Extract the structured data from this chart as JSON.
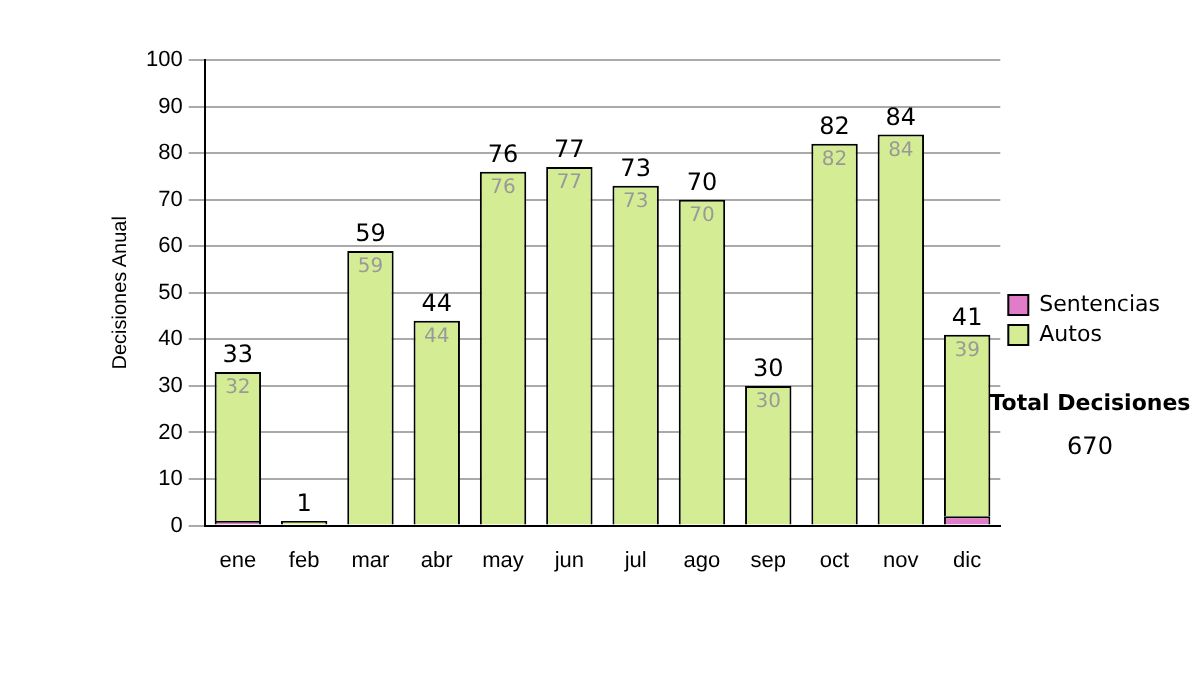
{
  "chart_data": {
    "type": "bar",
    "stacked": true,
    "ylabel": "Decisiones Anual",
    "categories": [
      "ene",
      "feb",
      "mar",
      "abr",
      "may",
      "jun",
      "jul",
      "ago",
      "sep",
      "oct",
      "nov",
      "dic"
    ],
    "series": [
      {
        "name": "Sentencias",
        "color": "#e07cc8",
        "values": [
          1,
          0,
          0,
          0,
          0,
          0,
          0,
          0,
          0,
          0,
          0,
          2
        ]
      },
      {
        "name": "Autos",
        "color": "#d4ec94",
        "values": [
          32,
          1,
          59,
          44,
          76,
          77,
          73,
          70,
          30,
          82,
          84,
          39
        ],
        "value_labels": [
          "32",
          null,
          "59",
          "44",
          "76",
          "77",
          "73",
          "70",
          "30",
          "82",
          "84",
          "39"
        ]
      }
    ],
    "totals": [
      "33",
      "1",
      "59",
      "44",
      "76",
      "77",
      "73",
      "70",
      "30",
      "82",
      "84",
      "41"
    ],
    "ylim": [
      0,
      100
    ],
    "yticks": [
      0,
      10,
      20,
      30,
      40,
      50,
      60,
      70,
      80,
      90,
      100
    ],
    "grid": "y",
    "legend": "right",
    "annotations": [
      "Total Decisiones",
      "670"
    ]
  }
}
